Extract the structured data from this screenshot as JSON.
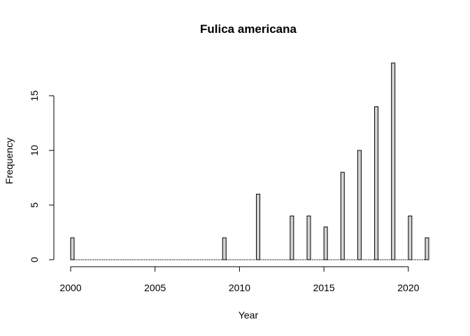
{
  "chart_data": {
    "type": "bar",
    "title": "Fulica americana",
    "xlabel": "Year",
    "ylabel": "Frequency",
    "xlim": [
      2000,
      2021
    ],
    "ylim": [
      0,
      18
    ],
    "x_ticks": [
      2000,
      2005,
      2010,
      2015,
      2020
    ],
    "y_ticks": [
      0,
      5,
      10,
      15
    ],
    "x_tick_labels": [
      "2000",
      "2005",
      "2010",
      "2015",
      "2020"
    ],
    "y_tick_labels": [
      "0",
      "5",
      "10",
      "15"
    ],
    "categories": [
      2000,
      2009,
      2011,
      2013,
      2014,
      2015,
      2016,
      2017,
      2018,
      2019,
      2020,
      2021
    ],
    "values": [
      2,
      2,
      6,
      4,
      4,
      3,
      8,
      10,
      14,
      18,
      4,
      2
    ],
    "bar_color": "#d3d3d3",
    "grid": false,
    "legend": "none"
  }
}
